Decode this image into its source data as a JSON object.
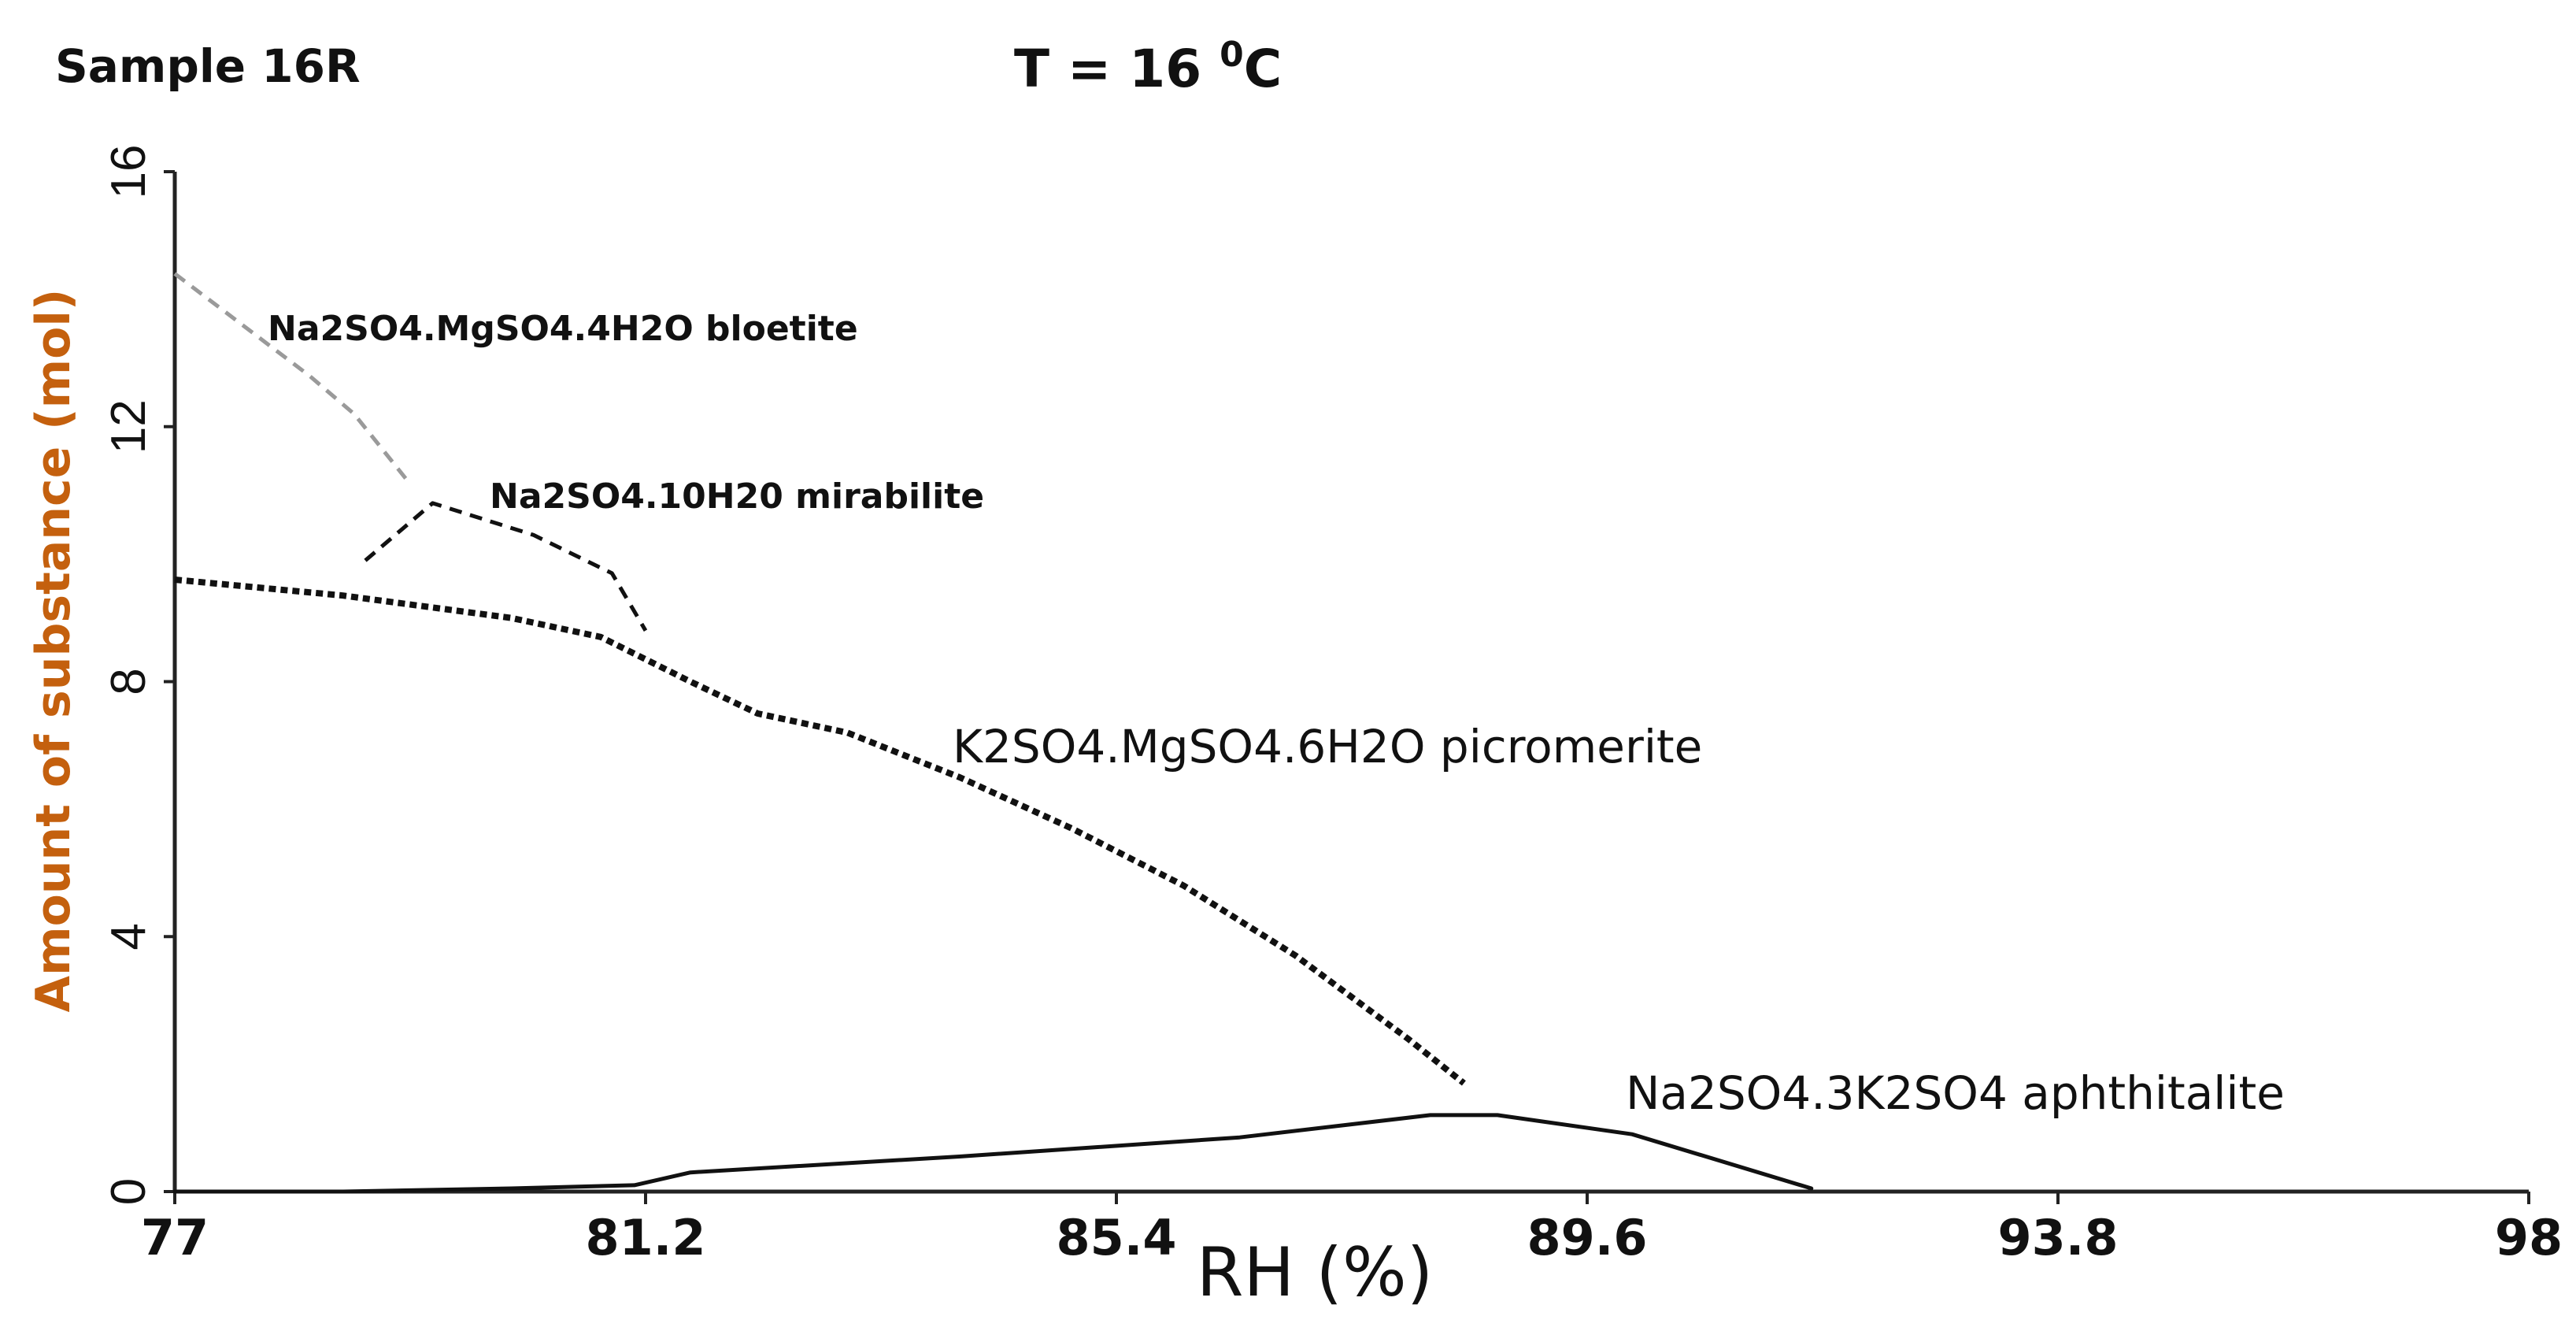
{
  "header": {
    "sample": "Sample 16R",
    "temperature_prefix": "T = 16 ",
    "temperature_degree": "0",
    "temperature_unit": "C"
  },
  "chart_data": {
    "type": "line",
    "title": "T = 16 0C",
    "subtitle": "Sample 16R",
    "xlabel": "RH (%)",
    "ylabel": "Amount of substance (mol)",
    "xlim": [
      77,
      98
    ],
    "ylim": [
      0,
      16
    ],
    "xticks": [
      "77",
      "81.2",
      "85.4",
      "89.6",
      "93.8",
      "98"
    ],
    "yticks": [
      "0",
      "4",
      "8",
      "12",
      "16"
    ],
    "grid": false,
    "series": [
      {
        "name": "Na2SO4.MgSO4.4H2O bloetite",
        "label": "Na2SO4.MgSO4.4H2O bloetite",
        "style": "dashed",
        "color": "#9a9a9a",
        "x": [
          77.0,
          78.2,
          78.6,
          79.1
        ],
        "y": [
          14.4,
          12.8,
          12.2,
          11.1
        ]
      },
      {
        "name": "Na2SO4.10H20 mirabilite",
        "label": "Na2SO4.10H20 mirabilite",
        "style": "dashed",
        "color": "#111111",
        "x": [
          78.7,
          79.3,
          80.2,
          80.9,
          81.2
        ],
        "y": [
          9.9,
          10.8,
          10.3,
          9.7,
          8.8
        ]
      },
      {
        "name": "K2SO4.MgSO4.6H2O picromerite",
        "label": "K2SO4.MgSO4.6H2O picromerite",
        "style": "dotted",
        "color": "#111111",
        "x": [
          77.0,
          78.5,
          80.0,
          80.8,
          81.6,
          82.2,
          83.0,
          84.0,
          85.0,
          86.0,
          87.0,
          88.0,
          88.5
        ],
        "y": [
          9.6,
          9.35,
          9.0,
          8.7,
          8.0,
          7.5,
          7.2,
          6.5,
          5.7,
          4.8,
          3.7,
          2.4,
          1.7
        ]
      },
      {
        "name": "Na2SO4.3K2SO4 aphthitalite",
        "label": "Na2SO4.3K2SO4 aphthitalite",
        "style": "solid",
        "color": "#111111",
        "x": [
          77.0,
          78.5,
          80.0,
          81.1,
          81.6,
          84.0,
          86.5,
          88.2,
          88.8,
          90.0,
          91.6
        ],
        "y": [
          0.0,
          0.0,
          0.05,
          0.1,
          0.3,
          0.55,
          0.85,
          1.2,
          1.2,
          0.9,
          0.05
        ]
      }
    ]
  }
}
